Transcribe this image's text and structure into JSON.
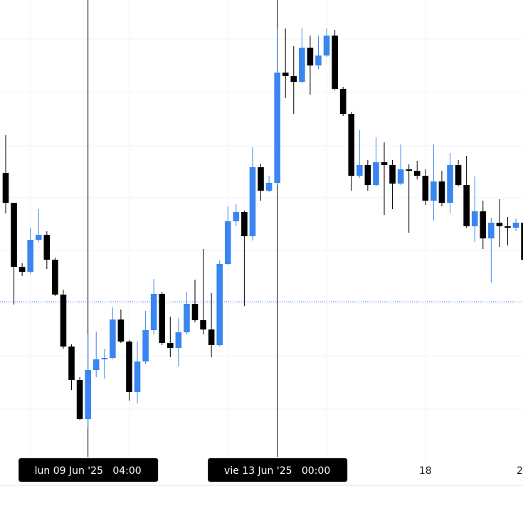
{
  "chart_data": {
    "type": "candlestick",
    "categories": [
      null,
      null,
      null,
      null,
      null,
      null,
      null,
      null,
      null,
      null,
      "lun 09 Jun '25   04:00",
      null,
      null,
      null,
      null,
      null,
      null,
      null,
      null,
      null,
      null,
      null,
      null,
      null,
      null,
      null,
      null,
      null,
      null,
      null,
      null,
      null,
      null,
      "vie 13 Jun '25   00:00",
      null,
      null,
      null,
      null,
      null,
      null,
      null,
      null,
      null,
      null,
      null,
      null,
      null,
      null,
      null,
      null,
      null,
      "18",
      null,
      null,
      null,
      null,
      null,
      null,
      null,
      null,
      null,
      null,
      null,
      "2"
    ],
    "open": [
      439,
      397,
      307,
      300,
      345,
      352,
      317,
      268,
      195,
      148,
      93,
      162,
      177,
      179,
      233,
      202,
      131,
      174,
      218,
      269,
      200,
      193,
      215,
      255,
      232,
      219,
      197,
      311,
      371,
      384,
      350,
      447,
      414,
      425,
      580,
      575,
      567,
      615,
      590,
      604,
      632,
      557,
      522,
      435,
      450,
      422,
      454,
      450,
      424,
      444,
      442,
      435,
      400,
      427,
      397,
      450,
      422,
      364,
      385,
      347,
      369,
      364,
      362,
      369
    ],
    "high": [
      492,
      397,
      312,
      362,
      388,
      357,
      320,
      275,
      198,
      152,
      212,
      216,
      192,
      250,
      247,
      204,
      202,
      245,
      290,
      272,
      237,
      235,
      272,
      289,
      332,
      270,
      316,
      392,
      395,
      386,
      475,
      452,
      435,
      642,
      642,
      617,
      642,
      632,
      632,
      642,
      640,
      560,
      525,
      499,
      457,
      489,
      482,
      457,
      479,
      451,
      456,
      444,
      479,
      442,
      467,
      457,
      463,
      434,
      400,
      376,
      402,
      377,
      375,
      375
    ],
    "low": [
      382,
      254,
      294,
      297,
      342,
      304,
      266,
      192,
      134,
      92,
      80,
      152,
      150,
      177,
      200,
      119,
      115,
      170,
      212,
      197,
      180,
      167,
      212,
      229,
      212,
      180,
      195,
      310,
      364,
      252,
      344,
      400,
      412,
      422,
      544,
      522,
      565,
      549,
      585,
      602,
      555,
      519,
      414,
      432,
      414,
      420,
      380,
      388,
      422,
      355,
      430,
      394,
      372,
      392,
      382,
      420,
      362,
      342,
      332,
      285,
      335,
      337,
      357,
      317
    ],
    "close": [
      397,
      307,
      300,
      345,
      352,
      317,
      268,
      195,
      148,
      93,
      162,
      177,
      179,
      233,
      202,
      131,
      174,
      218,
      269,
      200,
      193,
      215,
      255,
      232,
      219,
      197,
      311,
      371,
      384,
      350,
      447,
      414,
      425,
      580,
      575,
      567,
      615,
      590,
      604,
      632,
      557,
      522,
      435,
      450,
      422,
      454,
      450,
      424,
      444,
      442,
      435,
      400,
      427,
      397,
      450,
      422,
      364,
      385,
      347,
      369,
      364,
      362,
      369,
      317
    ],
    "up_color": "#3a86f0",
    "down_color": "#000000",
    "price_line": 258,
    "ylim": [
      0,
      642
    ],
    "grid_lines": [
      627,
      552,
      477,
      404,
      330,
      256,
      182,
      107
    ]
  }
}
